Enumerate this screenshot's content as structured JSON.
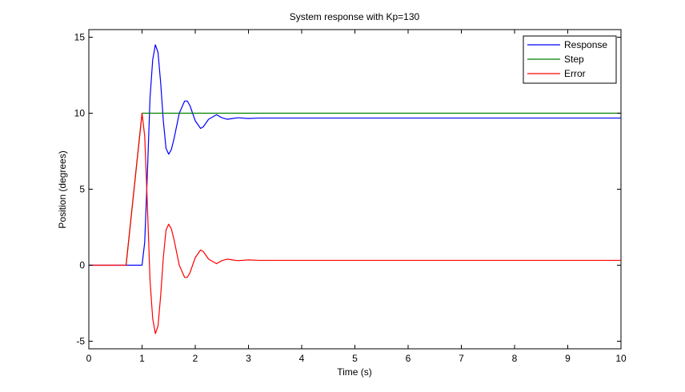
{
  "colors": {
    "background": "#ffffff",
    "axes": "#000000",
    "response": "#0000ff",
    "step": "#008000",
    "error": "#ff0000"
  },
  "chart_data": {
    "type": "line",
    "title": "System response with Kp=130",
    "xlabel": "Time (s)",
    "ylabel": "Position (degrees)",
    "xlim": [
      0,
      10
    ],
    "ylim": [
      -5.5,
      15.5
    ],
    "grid": false,
    "legend_position": "top-right",
    "xticks": [
      0,
      1,
      2,
      3,
      4,
      5,
      6,
      7,
      8,
      9,
      10
    ],
    "xtick_labels": [
      "0",
      "1",
      "2",
      "3",
      "4",
      "5",
      "6",
      "7",
      "8",
      "9",
      "10"
    ],
    "yticks": [
      -5,
      0,
      5,
      10,
      15
    ],
    "ytick_labels": [
      "-5",
      "0",
      "5",
      "10",
      "15"
    ],
    "series": [
      {
        "name": "Response",
        "color": "#0000ff",
        "x": [
          0,
          0.5,
          1.0,
          1.05,
          1.1,
          1.15,
          1.2,
          1.25,
          1.3,
          1.35,
          1.4,
          1.45,
          1.5,
          1.55,
          1.6,
          1.7,
          1.8,
          1.85,
          1.9,
          2.0,
          2.1,
          2.15,
          2.25,
          2.4,
          2.5,
          2.6,
          2.7,
          2.8,
          3.0,
          3.2,
          3.4,
          5.0,
          7.5,
          10.0
        ],
        "y": [
          0,
          0,
          0,
          1.5,
          6.0,
          11.0,
          13.5,
          14.5,
          14.0,
          12.0,
          9.5,
          7.7,
          7.3,
          7.6,
          8.3,
          10.0,
          10.8,
          10.8,
          10.5,
          9.5,
          9.0,
          9.1,
          9.6,
          9.9,
          9.7,
          9.6,
          9.65,
          9.7,
          9.65,
          9.68,
          9.68,
          9.68,
          9.68,
          9.68
        ]
      },
      {
        "name": "Step",
        "color": "#008000",
        "x": [
          0.7,
          1.0,
          10.0
        ],
        "y": [
          0,
          10,
          10
        ]
      },
      {
        "name": "Error",
        "color": "#ff0000",
        "x": [
          0,
          0.7,
          1.0,
          1.05,
          1.1,
          1.15,
          1.2,
          1.25,
          1.3,
          1.35,
          1.4,
          1.45,
          1.5,
          1.55,
          1.6,
          1.7,
          1.8,
          1.85,
          1.9,
          2.0,
          2.1,
          2.15,
          2.25,
          2.4,
          2.5,
          2.6,
          2.7,
          2.8,
          3.0,
          3.2,
          3.4,
          5.0,
          7.5,
          10.0
        ],
        "y": [
          0,
          0,
          10,
          8.5,
          4.0,
          -1.0,
          -3.5,
          -4.5,
          -4.0,
          -2.0,
          0.5,
          2.3,
          2.7,
          2.4,
          1.7,
          0.0,
          -0.8,
          -0.8,
          -0.5,
          0.5,
          1.0,
          0.9,
          0.4,
          0.1,
          0.3,
          0.4,
          0.35,
          0.3,
          0.35,
          0.32,
          0.32,
          0.32,
          0.32,
          0.32
        ]
      }
    ]
  }
}
